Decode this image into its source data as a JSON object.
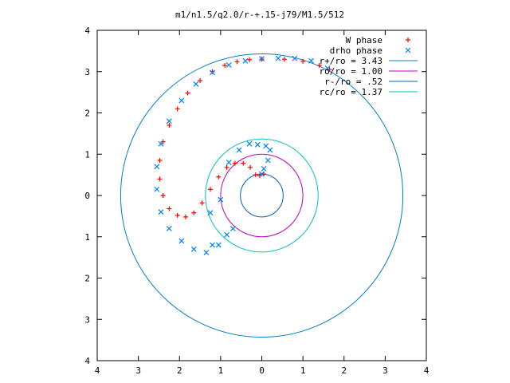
{
  "chart_data": {
    "type": "scatter",
    "title": "m1/n1.5/q2.0/r-+.15-j79/M1.5/512",
    "xlabel": "",
    "ylabel": "",
    "xlim": [
      -4,
      4
    ],
    "ylim": [
      -4,
      4
    ],
    "x_tick_labels": [
      "4",
      "3",
      "2",
      "1",
      "0",
      "1",
      "2",
      "3",
      "4"
    ],
    "y_tick_labels": [
      "4",
      "3",
      "2",
      "1",
      "0",
      "1",
      "2",
      "3",
      "4"
    ],
    "grid": false,
    "legend_position": "top-right",
    "series": [
      {
        "name": "W phase",
        "marker": "+",
        "color": "#ff0000",
        "points": [
          [
            0.0,
            3.3
          ],
          [
            -0.3,
            3.29
          ],
          [
            -0.6,
            3.24
          ],
          [
            -0.9,
            3.15
          ],
          [
            -1.2,
            3.0
          ],
          [
            -1.5,
            2.78
          ],
          [
            -1.8,
            2.48
          ],
          [
            -2.05,
            2.1
          ],
          [
            -2.25,
            1.7
          ],
          [
            -2.4,
            1.3
          ],
          [
            -2.48,
            0.85
          ],
          [
            -2.48,
            0.4
          ],
          [
            -2.4,
            0.0
          ],
          [
            -2.25,
            -0.32
          ],
          [
            -2.05,
            -0.48
          ],
          [
            -1.85,
            -0.52
          ],
          [
            -1.65,
            -0.42
          ],
          [
            -1.45,
            -0.18
          ],
          [
            -1.25,
            0.15
          ],
          [
            -1.05,
            0.45
          ],
          [
            -0.85,
            0.68
          ],
          [
            -0.65,
            0.78
          ],
          [
            -0.45,
            0.78
          ],
          [
            -0.28,
            0.68
          ],
          [
            -0.15,
            0.5
          ],
          [
            -0.05,
            0.48
          ],
          [
            0.05,
            0.52
          ],
          [
            0.55,
            3.3
          ],
          [
            1.0,
            3.25
          ],
          [
            1.4,
            3.15
          ],
          [
            1.65,
            3.05
          ]
        ]
      },
      {
        "name": "drho phase",
        "marker": "x",
        "color": "#0080ff",
        "points": [
          [
            1.6,
            3.08
          ],
          [
            1.2,
            3.26
          ],
          [
            0.8,
            3.32
          ],
          [
            0.4,
            3.32
          ],
          [
            0.0,
            3.31
          ],
          [
            -0.4,
            3.26
          ],
          [
            -0.8,
            3.16
          ],
          [
            -1.2,
            2.98
          ],
          [
            -1.6,
            2.7
          ],
          [
            -1.95,
            2.3
          ],
          [
            -2.25,
            1.8
          ],
          [
            -2.45,
            1.25
          ],
          [
            -2.55,
            0.7
          ],
          [
            -2.55,
            0.15
          ],
          [
            -2.45,
            -0.4
          ],
          [
            -2.25,
            -0.8
          ],
          [
            -1.95,
            -1.1
          ],
          [
            -1.65,
            -1.3
          ],
          [
            -1.35,
            -1.38
          ],
          [
            -1.05,
            -1.2
          ],
          [
            -0.85,
            -0.95
          ],
          [
            -1.2,
            -1.2
          ],
          [
            -0.7,
            -0.8
          ],
          [
            -1.25,
            -0.42
          ],
          [
            -1.0,
            -0.1
          ],
          [
            -0.8,
            0.8
          ],
          [
            -0.55,
            1.1
          ],
          [
            -0.3,
            1.25
          ],
          [
            -0.1,
            1.23
          ],
          [
            0.1,
            1.2
          ],
          [
            0.2,
            1.1
          ],
          [
            0.15,
            0.85
          ],
          [
            0.05,
            0.65
          ],
          [
            0.0,
            0.52
          ]
        ]
      }
    ],
    "circles": [
      {
        "label": "r+/ro = 3.43",
        "radius": 3.43,
        "color": "#0080c0"
      },
      {
        "label": "ro/ro = 1.00",
        "radius": 1.0,
        "color": "#c000c0"
      },
      {
        "label": "r-/ro = .52",
        "radius": 0.52,
        "color": "#0060c0"
      },
      {
        "label": "rc/ro = 1.37",
        "radius": 1.37,
        "color": "#00c0c0"
      }
    ]
  }
}
